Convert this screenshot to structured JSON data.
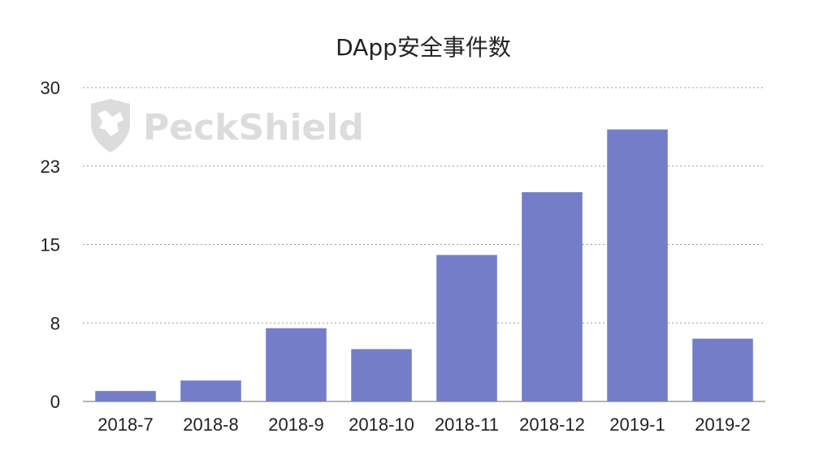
{
  "watermark": {
    "text": "PeckShield",
    "icon": "shield-wolf-icon",
    "color": "#dcdcdc"
  },
  "chart_data": {
    "type": "bar",
    "title": "DApp安全事件数",
    "categories": [
      "2018-7",
      "2018-8",
      "2018-9",
      "2018-10",
      "2018-11",
      "2018-12",
      "2019-1",
      "2019-2"
    ],
    "series": [
      {
        "values": [
          1,
          2,
          7,
          5,
          14,
          20,
          26,
          6
        ]
      }
    ],
    "yticks": [
      "0",
      "8",
      "15",
      "23",
      "30"
    ],
    "ylim": [
      0,
      30
    ],
    "xlabel": "",
    "ylabel": "",
    "grid": true,
    "grid_style": "dotted",
    "bar_color": "#737dc8",
    "legend": "none"
  }
}
